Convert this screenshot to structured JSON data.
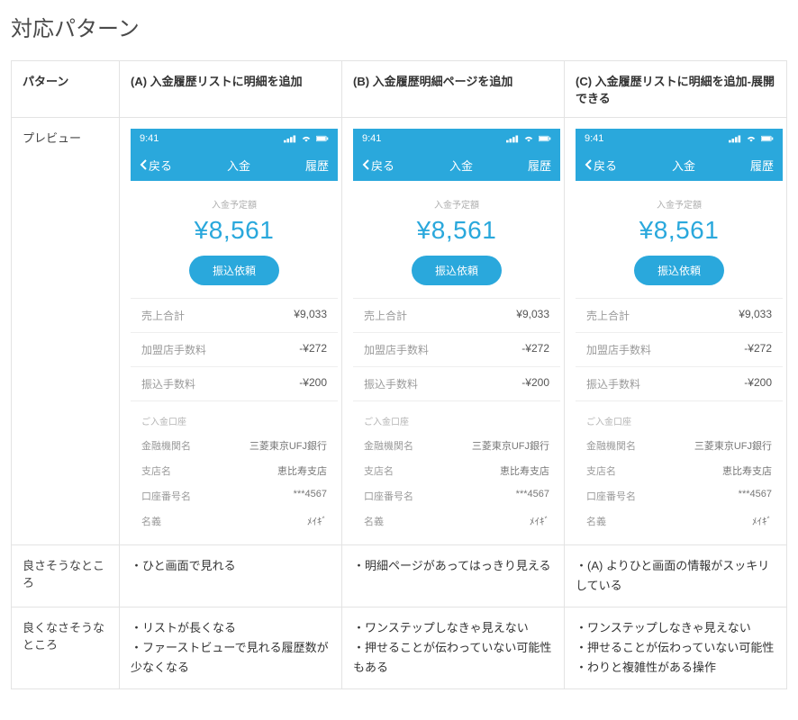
{
  "title": "対応パターン",
  "headers": {
    "pattern": "パターン",
    "optA": "(A) 入金履歴リストに明細を追加",
    "optB": "(B) 入金履歴明細ページを追加",
    "optC": "(C) 入金履歴リストに明細を追加-展開できる"
  },
  "rowLabels": {
    "preview": "プレビュー",
    "pros": "良さそうなところ",
    "cons": "良くなさそうなところ"
  },
  "phone": {
    "time": "9:41",
    "back": "戻る",
    "navTitle": "入金",
    "navRight": "履歴",
    "amountLabel": "入金予定額",
    "amountValue": "¥8,561",
    "buttonLabel": "振込依頼",
    "rows": [
      {
        "k": "売上合計",
        "v": "¥9,033"
      },
      {
        "k": "加盟店手数料",
        "v": "-¥272"
      },
      {
        "k": "振込手数料",
        "v": "-¥200"
      }
    ],
    "bankSection": "ご入金口座",
    "bankRows": [
      {
        "k": "金融機関名",
        "v": "三菱東京UFJ銀行"
      },
      {
        "k": "支店名",
        "v": "恵比寿支店"
      },
      {
        "k": "口座番号名",
        "v": "***4567"
      },
      {
        "k": "名義",
        "v": "ﾒｲｷﾞ"
      }
    ]
  },
  "pros": {
    "A": [
      "ひと画面で見れる"
    ],
    "B": [
      "明細ページがあってはっきり見える"
    ],
    "C": [
      "(A) よりひと画面の情報がスッキリしている"
    ]
  },
  "cons": {
    "A": [
      "リストが長くなる",
      "ファーストビューで見れる履歴数が少なくなる"
    ],
    "B": [
      "ワンステップしなきゃ見えない",
      "押せることが伝わっていない可能性もある"
    ],
    "C": [
      "ワンステップしなきゃ見えない",
      "押せることが伝わっていない可能性",
      "わりと複雑性がある操作"
    ]
  },
  "colors": {
    "accent": "#2aa8dc",
    "border": "#e3e3e3",
    "muted": "#9b9b9b"
  }
}
